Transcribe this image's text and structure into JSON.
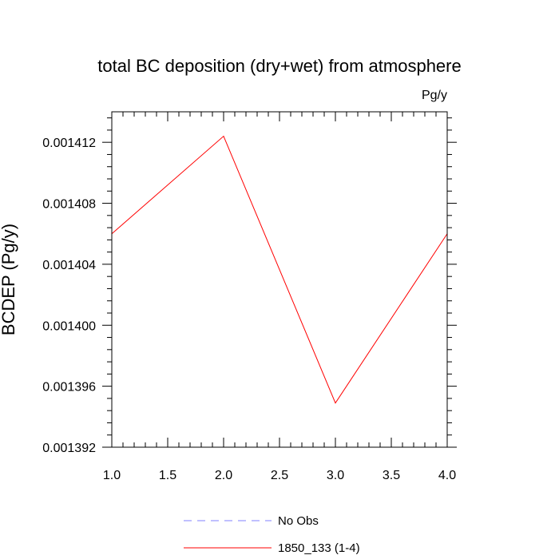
{
  "chart_data": {
    "type": "line",
    "title": "total BC deposition (dry+wet) from atmosphere",
    "units_label": "Pg/y",
    "ylabel": "BCDEP  (Pg/y)",
    "xlabel": "",
    "xlim": [
      1.0,
      4.0
    ],
    "ylim": [
      0.001392,
      0.001414
    ],
    "x_ticks": [
      1.0,
      1.5,
      2.0,
      2.5,
      3.0,
      3.5,
      4.0
    ],
    "x_tick_labels": [
      "1.0",
      "1.5",
      "2.0",
      "2.5",
      "3.0",
      "3.5",
      "4.0"
    ],
    "y_ticks": [
      0.001392,
      0.001396,
      0.0014,
      0.001404,
      0.001408,
      0.001412
    ],
    "y_tick_labels": [
      "0.001392",
      "0.001396",
      "0.001400",
      "0.001404",
      "0.001408",
      "0.001412"
    ],
    "y_minor_step": 8e-07,
    "x_minor_step": 0.1,
    "grid": false,
    "legend_position": "bottom",
    "series": [
      {
        "name": "No Obs",
        "color": "#8080ff",
        "dash": true,
        "x": [],
        "y": []
      },
      {
        "name": "1850_133 (1-4)",
        "color": "#ff0000",
        "dash": false,
        "x": [
          1.0,
          2.0,
          3.0,
          4.0
        ],
        "y": [
          0.001406,
          0.0014124,
          0.0013949,
          0.001406
        ]
      }
    ]
  }
}
